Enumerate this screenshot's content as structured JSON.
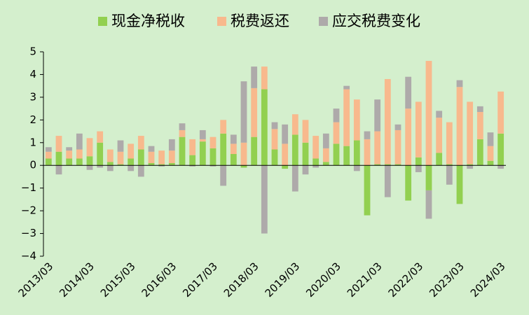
{
  "chart_data": {
    "type": "bar",
    "stacked": true,
    "categories": [
      "2013/03",
      null,
      null,
      null,
      "2014/03",
      null,
      null,
      null,
      "2015/03",
      null,
      null,
      null,
      "2016/03",
      null,
      null,
      null,
      "2017/03",
      null,
      null,
      null,
      "2018/03",
      null,
      null,
      null,
      "2019/03",
      null,
      null,
      null,
      "2020/03",
      null,
      null,
      null,
      "2021/03",
      null,
      null,
      null,
      "2022/03",
      null,
      null,
      null,
      "2023/03",
      null,
      null,
      null,
      "2024/03"
    ],
    "series": [
      {
        "name": "现金净税收",
        "color": "#92d050",
        "values": [
          0.3,
          0.6,
          0.3,
          0.3,
          0.4,
          1.0,
          0.15,
          0.05,
          0.3,
          0.7,
          0.1,
          0.05,
          0.1,
          1.25,
          0.45,
          1.05,
          0.75,
          1.4,
          0.5,
          -0.1,
          1.25,
          3.35,
          0.7,
          -0.15,
          1.35,
          1.0,
          0.3,
          0.15,
          0.95,
          0.85,
          1.1,
          -2.2,
          0.05,
          0.05,
          0.05,
          -1.55,
          0.35,
          -1.1,
          0.55,
          0.05,
          -1.7,
          0.05,
          1.15,
          0.2,
          1.4
        ]
      },
      {
        "name": "税费返还",
        "color": "#f8b98d",
        "values": [
          0.3,
          0.7,
          0.35,
          0.4,
          0.8,
          0.5,
          0.55,
          0.55,
          0.65,
          0.6,
          0.5,
          0.6,
          0.55,
          0.3,
          0.7,
          0.1,
          0.5,
          0.6,
          0.45,
          1.0,
          2.15,
          1.0,
          0.9,
          0.95,
          0.9,
          1.0,
          1.0,
          0.6,
          0.95,
          2.5,
          1.8,
          1.15,
          1.45,
          3.75,
          1.5,
          2.5,
          2.45,
          4.6,
          1.55,
          1.85,
          3.45,
          2.75,
          1.2,
          0.65,
          1.85
        ]
      },
      {
        "name": "应交税费变化",
        "color": "#aeaaaa",
        "values": [
          0.2,
          -0.4,
          0.15,
          0.7,
          -0.2,
          -0.1,
          -0.25,
          0.5,
          -0.25,
          -0.5,
          0.25,
          -0.05,
          0.5,
          0.3,
          -0.05,
          0.4,
          -0.05,
          -0.9,
          0.4,
          2.7,
          0.95,
          -3.0,
          0.3,
          0.85,
          -1.15,
          -0.4,
          -0.1,
          0.65,
          0.6,
          0.15,
          -0.25,
          0.35,
          1.4,
          -1.4,
          0.25,
          1.4,
          -0.3,
          -1.25,
          0.3,
          -0.85,
          0.3,
          -0.15,
          0.25,
          0.6,
          -0.15
        ]
      }
    ],
    "ylim": [
      -4,
      5
    ],
    "yticks": [
      {
        "value": -4,
        "label": "−4"
      },
      {
        "value": -3,
        "label": "−3"
      },
      {
        "value": -2,
        "label": "−2"
      },
      {
        "value": -1,
        "label": "−1"
      },
      0,
      1,
      2,
      3,
      4,
      5
    ],
    "legend": "top"
  }
}
